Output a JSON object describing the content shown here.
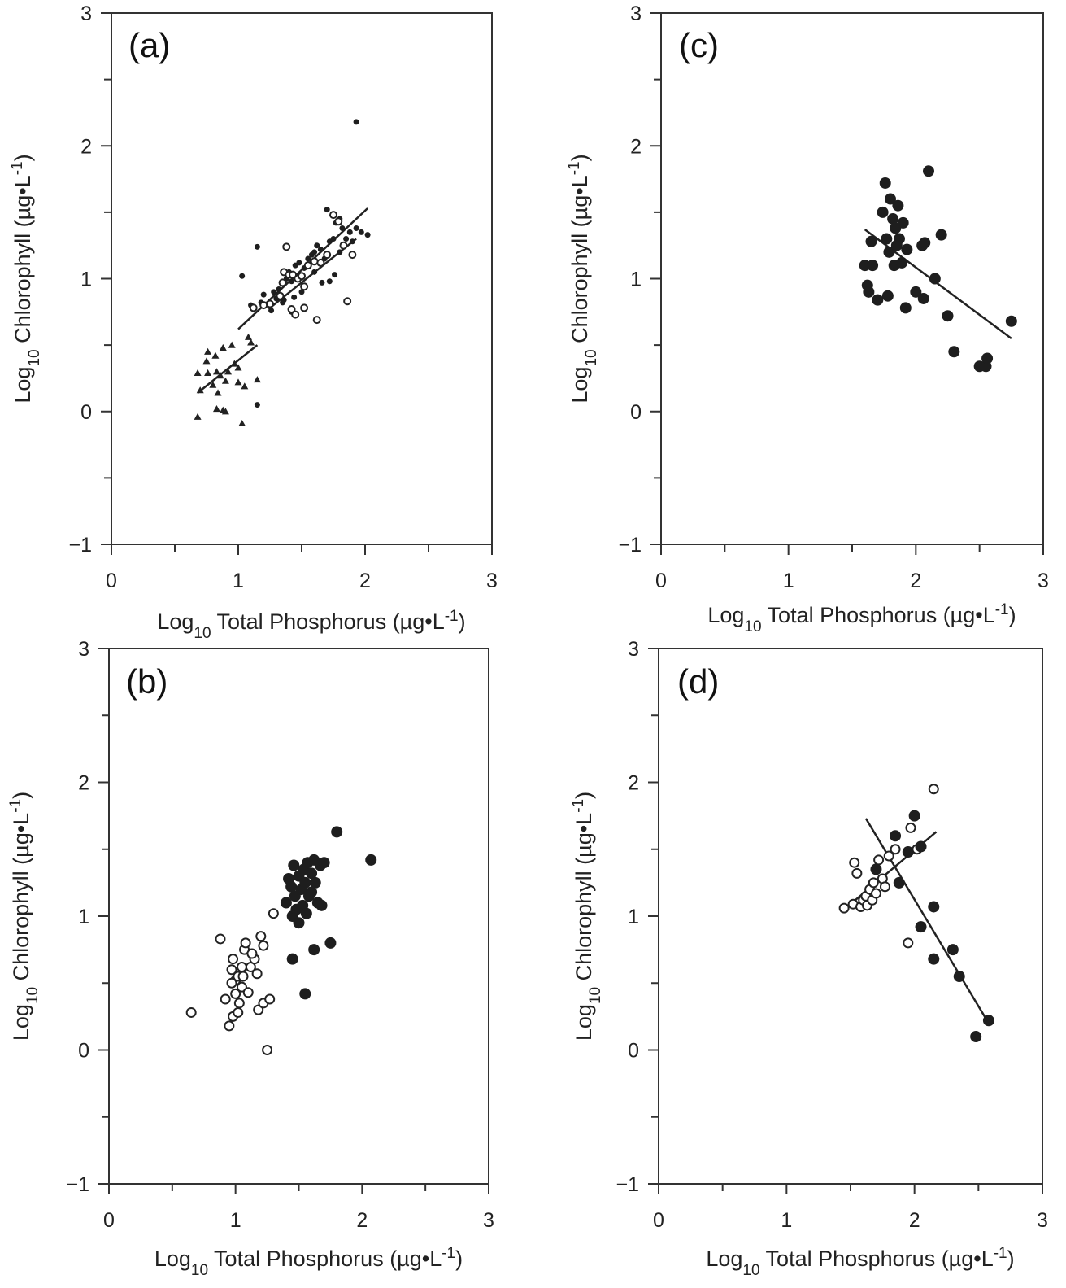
{
  "figure": {
    "x_axis_label": {
      "prefix": "Log",
      "sub": "10",
      "main": " Total Phosphorus (µg•L",
      "sup": "-1",
      "end": ")"
    },
    "y_axis_label": {
      "prefix": "Log",
      "sub": "10",
      "main": "  Chlorophyll (µg•L",
      "sup": "-1",
      "end": ")"
    }
  },
  "chart_data": [
    {
      "id": "a",
      "panel_label": "(a)",
      "type": "scatter",
      "xlim": [
        0,
        3
      ],
      "ylim": [
        -1,
        3
      ],
      "xticks": [
        0,
        1,
        2,
        3
      ],
      "yticks": [
        -1,
        0,
        1,
        2,
        3
      ],
      "series": [
        {
          "marker": "triangle",
          "points": [
            [
              0.68,
              0.29
            ],
            [
              0.7,
              0.16
            ],
            [
              0.75,
              0.38
            ],
            [
              0.76,
              0.45
            ],
            [
              0.76,
              0.29
            ],
            [
              0.8,
              0.2
            ],
            [
              0.82,
              0.42
            ],
            [
              0.83,
              0.02
            ],
            [
              0.83,
              0.3
            ],
            [
              0.84,
              0.14
            ],
            [
              0.86,
              0.27
            ],
            [
              0.88,
              0.48
            ],
            [
              0.88,
              0.01
            ],
            [
              0.9,
              0.23
            ],
            [
              0.92,
              0.3
            ],
            [
              0.95,
              0.5
            ],
            [
              0.97,
              0.36
            ],
            [
              1.0,
              0.33
            ],
            [
              1.03,
              -0.09
            ],
            [
              1.05,
              0.19
            ],
            [
              1.08,
              0.56
            ],
            [
              1.1,
              0.52
            ],
            [
              1.15,
              0.24
            ],
            [
              0.68,
              -0.04
            ],
            [
              0.9,
              0.0
            ],
            [
              1.0,
              0.22
            ]
          ]
        },
        {
          "marker": "filled-dot",
          "points": [
            [
              1.03,
              1.02
            ],
            [
              1.1,
              0.8
            ],
            [
              1.15,
              1.24
            ],
            [
              1.18,
              0.82
            ],
            [
              1.2,
              0.88
            ],
            [
              1.25,
              0.79
            ],
            [
              1.28,
              0.9
            ],
            [
              1.3,
              0.85
            ],
            [
              1.32,
              0.92
            ],
            [
              1.38,
              1.0
            ],
            [
              1.4,
              1.05
            ],
            [
              1.42,
              0.98
            ],
            [
              1.45,
              1.1
            ],
            [
              1.48,
              1.12
            ],
            [
              1.52,
              1.08
            ],
            [
              1.55,
              1.15
            ],
            [
              1.58,
              1.18
            ],
            [
              1.6,
              1.2
            ],
            [
              1.62,
              1.25
            ],
            [
              1.65,
              1.22
            ],
            [
              1.68,
              1.15
            ],
            [
              1.7,
              1.52
            ],
            [
              1.72,
              1.28
            ],
            [
              1.75,
              1.3
            ],
            [
              1.77,
              1.42
            ],
            [
              1.8,
              1.2
            ],
            [
              1.82,
              1.38
            ],
            [
              1.85,
              1.3
            ],
            [
              1.88,
              1.35
            ],
            [
              1.9,
              1.28
            ],
            [
              1.93,
              1.38
            ],
            [
              1.97,
              1.35
            ],
            [
              2.02,
              1.33
            ],
            [
              1.93,
              2.18
            ],
            [
              1.15,
              0.05
            ],
            [
              1.72,
              0.98
            ],
            [
              1.76,
              1.03
            ],
            [
              1.66,
              0.97
            ],
            [
              1.35,
              0.82
            ],
            [
              1.42,
              0.75
            ],
            [
              1.5,
              0.9
            ],
            [
              1.26,
              0.76
            ],
            [
              1.36,
              0.84
            ],
            [
              1.44,
              0.86
            ],
            [
              1.6,
              1.05
            ],
            [
              1.8,
              1.45
            ]
          ]
        },
        {
          "marker": "open-dot",
          "points": [
            [
              1.12,
              0.78
            ],
            [
              1.2,
              0.8
            ],
            [
              1.25,
              0.81
            ],
            [
              1.33,
              0.87
            ],
            [
              1.36,
              1.05
            ],
            [
              1.38,
              1.24
            ],
            [
              1.4,
              1.03
            ],
            [
              1.42,
              0.77
            ],
            [
              1.45,
              0.73
            ],
            [
              1.47,
              1.0
            ],
            [
              1.5,
              1.02
            ],
            [
              1.52,
              0.94
            ],
            [
              1.55,
              1.1
            ],
            [
              1.6,
              1.13
            ],
            [
              1.62,
              0.69
            ],
            [
              1.65,
              1.12
            ],
            [
              1.7,
              1.18
            ],
            [
              1.75,
              1.48
            ],
            [
              1.79,
              1.43
            ],
            [
              1.83,
              1.25
            ],
            [
              1.86,
              0.83
            ],
            [
              1.9,
              1.18
            ],
            [
              1.35,
              0.97
            ],
            [
              1.43,
              1.03
            ],
            [
              1.52,
              0.78
            ]
          ]
        }
      ],
      "lines": [
        {
          "x": [
            0.68,
            1.15
          ],
          "y": [
            0.14,
            0.5
          ]
        },
        {
          "x": [
            1.0,
            2.02
          ],
          "y": [
            0.62,
            1.53
          ]
        },
        {
          "x": [
            1.25,
            1.93
          ],
          "y": [
            0.78,
            1.3
          ]
        }
      ]
    },
    {
      "id": "b",
      "panel_label": "(b)",
      "type": "scatter",
      "xlim": [
        0,
        3
      ],
      "ylim": [
        -1,
        3
      ],
      "xticks": [
        0,
        1,
        2,
        3
      ],
      "yticks": [
        -1,
        0,
        1,
        2,
        3
      ],
      "series": [
        {
          "marker": "open-dot",
          "points": [
            [
              0.65,
              0.28
            ],
            [
              0.88,
              0.83
            ],
            [
              0.92,
              0.38
            ],
            [
              0.95,
              0.18
            ],
            [
              0.97,
              0.6
            ],
            [
              0.98,
              0.68
            ],
            [
              0.98,
              0.25
            ],
            [
              1.0,
              0.42
            ],
            [
              1.0,
              0.52
            ],
            [
              1.02,
              0.55
            ],
            [
              1.03,
              0.35
            ],
            [
              1.05,
              0.62
            ],
            [
              1.05,
              0.47
            ],
            [
              1.07,
              0.75
            ],
            [
              1.08,
              0.8
            ],
            [
              1.1,
              0.43
            ],
            [
              1.12,
              0.62
            ],
            [
              1.15,
              0.68
            ],
            [
              1.17,
              0.57
            ],
            [
              1.18,
              0.3
            ],
            [
              1.2,
              0.85
            ],
            [
              1.22,
              0.78
            ],
            [
              1.22,
              0.35
            ],
            [
              1.25,
              0.0
            ],
            [
              1.27,
              0.38
            ],
            [
              1.3,
              1.02
            ],
            [
              0.97,
              0.5
            ],
            [
              1.02,
              0.28
            ],
            [
              1.06,
              0.55
            ],
            [
              1.13,
              0.72
            ]
          ]
        },
        {
          "marker": "filled-dot",
          "points": [
            [
              1.4,
              1.1
            ],
            [
              1.42,
              1.28
            ],
            [
              1.44,
              1.22
            ],
            [
              1.45,
              1.0
            ],
            [
              1.46,
              1.38
            ],
            [
              1.47,
              1.15
            ],
            [
              1.48,
              1.05
            ],
            [
              1.5,
              1.3
            ],
            [
              1.5,
              0.95
            ],
            [
              1.52,
              1.2
            ],
            [
              1.53,
              1.08
            ],
            [
              1.54,
              1.35
            ],
            [
              1.55,
              1.25
            ],
            [
              1.56,
              1.02
            ],
            [
              1.57,
              1.4
            ],
            [
              1.58,
              1.15
            ],
            [
              1.6,
              1.32
            ],
            [
              1.6,
              1.18
            ],
            [
              1.62,
              1.42
            ],
            [
              1.63,
              1.25
            ],
            [
              1.65,
              1.1
            ],
            [
              1.67,
              1.38
            ],
            [
              1.68,
              1.08
            ],
            [
              1.7,
              1.4
            ],
            [
              1.45,
              0.68
            ],
            [
              1.55,
              0.42
            ],
            [
              1.62,
              0.75
            ],
            [
              1.75,
              0.8
            ],
            [
              1.8,
              1.63
            ],
            [
              2.07,
              1.42
            ]
          ]
        }
      ],
      "lines": []
    },
    {
      "id": "c",
      "panel_label": "(c)",
      "type": "scatter",
      "xlim": [
        0,
        3
      ],
      "ylim": [
        -1,
        3
      ],
      "xticks": [
        0,
        1,
        2,
        3
      ],
      "yticks": [
        -1,
        0,
        1,
        2,
        3
      ],
      "series": [
        {
          "marker": "filled-dot",
          "points": [
            [
              1.6,
              1.1
            ],
            [
              1.62,
              0.95
            ],
            [
              1.63,
              0.9
            ],
            [
              1.65,
              1.28
            ],
            [
              1.66,
              1.1
            ],
            [
              1.7,
              0.84
            ],
            [
              1.74,
              1.5
            ],
            [
              1.76,
              1.72
            ],
            [
              1.77,
              1.3
            ],
            [
              1.78,
              0.87
            ],
            [
              1.79,
              1.2
            ],
            [
              1.8,
              1.6
            ],
            [
              1.82,
              1.45
            ],
            [
              1.83,
              1.1
            ],
            [
              1.84,
              1.38
            ],
            [
              1.85,
              1.25
            ],
            [
              1.86,
              1.55
            ],
            [
              1.87,
              1.3
            ],
            [
              1.89,
              1.12
            ],
            [
              1.9,
              1.42
            ],
            [
              1.92,
              0.78
            ],
            [
              1.93,
              1.22
            ],
            [
              2.0,
              0.9
            ],
            [
              2.05,
              1.25
            ],
            [
              2.06,
              0.85
            ],
            [
              2.07,
              1.27
            ],
            [
              2.1,
              1.81
            ],
            [
              2.15,
              1.0
            ],
            [
              2.2,
              1.33
            ],
            [
              2.25,
              0.72
            ],
            [
              2.3,
              0.45
            ],
            [
              2.5,
              0.34
            ],
            [
              2.55,
              0.34
            ],
            [
              2.56,
              0.4
            ],
            [
              2.75,
              0.68
            ]
          ]
        }
      ],
      "lines": [
        {
          "x": [
            1.6,
            2.75
          ],
          "y": [
            1.37,
            0.55
          ]
        }
      ]
    },
    {
      "id": "d",
      "panel_label": "(d)",
      "type": "scatter",
      "xlim": [
        0,
        3
      ],
      "ylim": [
        -1,
        3
      ],
      "xticks": [
        0,
        1,
        2,
        3
      ],
      "yticks": [
        -1,
        0,
        1,
        2,
        3
      ],
      "series": [
        {
          "marker": "open-dot",
          "points": [
            [
              1.45,
              1.06
            ],
            [
              1.52,
              1.09
            ],
            [
              1.53,
              1.4
            ],
            [
              1.55,
              1.32
            ],
            [
              1.58,
              1.07
            ],
            [
              1.6,
              1.12
            ],
            [
              1.62,
              1.15
            ],
            [
              1.63,
              1.08
            ],
            [
              1.65,
              1.2
            ],
            [
              1.67,
              1.12
            ],
            [
              1.68,
              1.25
            ],
            [
              1.7,
              1.17
            ],
            [
              1.72,
              1.42
            ],
            [
              1.75,
              1.28
            ],
            [
              1.77,
              1.22
            ],
            [
              1.8,
              1.45
            ],
            [
              1.85,
              1.5
            ],
            [
              1.95,
              0.8
            ],
            [
              1.97,
              1.66
            ],
            [
              2.02,
              1.5
            ],
            [
              2.15,
              1.95
            ]
          ]
        },
        {
          "marker": "filled-dot",
          "points": [
            [
              1.7,
              1.35
            ],
            [
              1.85,
              1.6
            ],
            [
              1.88,
              1.25
            ],
            [
              1.95,
              1.48
            ],
            [
              2.0,
              1.75
            ],
            [
              2.05,
              1.52
            ],
            [
              2.05,
              0.92
            ],
            [
              2.15,
              1.07
            ],
            [
              2.15,
              0.68
            ],
            [
              2.3,
              0.75
            ],
            [
              2.35,
              0.55
            ],
            [
              2.48,
              0.1
            ],
            [
              2.58,
              0.22
            ]
          ]
        }
      ],
      "lines": [
        {
          "x": [
            1.45,
            2.17
          ],
          "y": [
            1.05,
            1.63
          ]
        },
        {
          "x": [
            1.62,
            2.58
          ],
          "y": [
            1.73,
            0.2
          ]
        }
      ]
    }
  ]
}
